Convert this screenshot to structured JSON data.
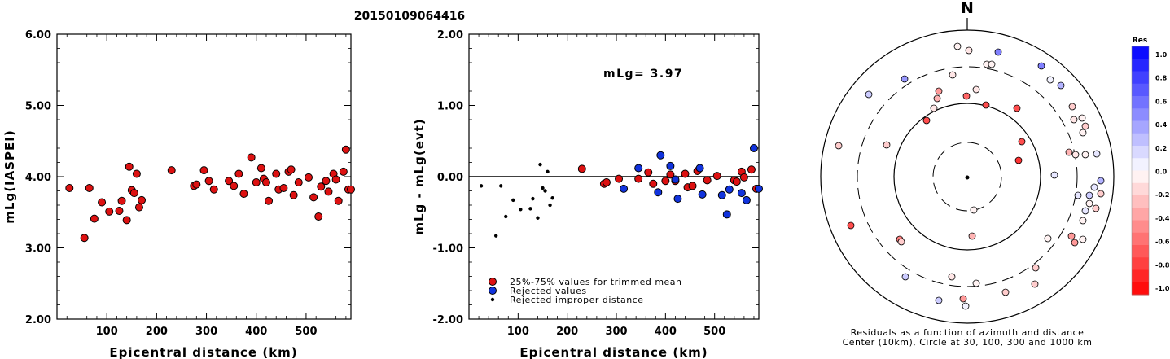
{
  "title": "20150109064416",
  "chart_data": [
    {
      "type": "scatter",
      "name": "magnitude-vs-distance",
      "xlabel": "Epicentral distance (km)",
      "ylabel": "mLg(IASPEI)",
      "xlim": [
        0,
        590
      ],
      "ylim": [
        2.0,
        6.0
      ],
      "xticks": [
        100,
        200,
        300,
        400,
        500
      ],
      "yticks": [
        2.0,
        3.0,
        4.0,
        5.0,
        6.0
      ],
      "ytick_labels": [
        "2.00",
        "3.00",
        "4.00",
        "5.00",
        "6.00"
      ],
      "points": [
        [
          25,
          3.84
        ],
        [
          55,
          3.14
        ],
        [
          65,
          3.84
        ],
        [
          75,
          3.41
        ],
        [
          90,
          3.64
        ],
        [
          105,
          3.51
        ],
        [
          125,
          3.52
        ],
        [
          130,
          3.66
        ],
        [
          140,
          3.39
        ],
        [
          145,
          4.14
        ],
        [
          150,
          3.81
        ],
        [
          155,
          3.77
        ],
        [
          160,
          4.04
        ],
        [
          165,
          3.57
        ],
        [
          170,
          3.67
        ],
        [
          230,
          4.09
        ],
        [
          275,
          3.87
        ],
        [
          280,
          3.89
        ],
        [
          295,
          4.09
        ],
        [
          305,
          3.94
        ],
        [
          315,
          3.82
        ],
        [
          345,
          3.94
        ],
        [
          355,
          3.87
        ],
        [
          365,
          4.04
        ],
        [
          375,
          3.76
        ],
        [
          390,
          4.27
        ],
        [
          400,
          3.92
        ],
        [
          410,
          4.12
        ],
        [
          415,
          3.97
        ],
        [
          420,
          3.92
        ],
        [
          425,
          3.66
        ],
        [
          440,
          4.04
        ],
        [
          445,
          3.82
        ],
        [
          455,
          3.84
        ],
        [
          465,
          4.07
        ],
        [
          470,
          4.1
        ],
        [
          475,
          3.74
        ],
        [
          485,
          3.92
        ],
        [
          505,
          3.99
        ],
        [
          515,
          3.71
        ],
        [
          525,
          3.44
        ],
        [
          530,
          3.86
        ],
        [
          540,
          3.94
        ],
        [
          545,
          3.79
        ],
        [
          555,
          4.04
        ],
        [
          560,
          3.96
        ],
        [
          565,
          3.66
        ],
        [
          575,
          4.07
        ],
        [
          580,
          4.38
        ],
        [
          585,
          3.82
        ],
        [
          590,
          3.82
        ]
      ]
    },
    {
      "type": "scatter",
      "name": "residual-vs-distance",
      "xlabel": "Epicentral distance (km)",
      "ylabel": "mLg - mLg(evt)",
      "annotation": "mLg= 3.97",
      "xlim": [
        0,
        590
      ],
      "ylim": [
        -2.0,
        2.0
      ],
      "xticks": [
        100,
        200,
        300,
        400,
        500
      ],
      "yticks": [
        -2.0,
        -1.0,
        0.0,
        1.0,
        2.0
      ],
      "ytick_labels": [
        "-2.00",
        "-1.00",
        "0.00",
        "1.00",
        "2.00"
      ],
      "legend": [
        {
          "label": "25%-75% values for trimmed mean",
          "color": "#dd1111"
        },
        {
          "label": "Rejected values",
          "color": "#1133dd"
        },
        {
          "label": "Rejected improper distance",
          "color": "#000000"
        }
      ],
      "series": [
        {
          "name": "25%-75% values for trimmed mean",
          "points": [
            [
              230,
              0.11
            ],
            [
              275,
              -0.1
            ],
            [
              280,
              -0.08
            ],
            [
              305,
              -0.03
            ],
            [
              345,
              -0.03
            ],
            [
              365,
              0.06
            ],
            [
              375,
              -0.1
            ],
            [
              400,
              -0.06
            ],
            [
              410,
              0.03
            ],
            [
              420,
              -0.06
            ],
            [
              440,
              0.04
            ],
            [
              445,
              -0.15
            ],
            [
              455,
              -0.13
            ],
            [
              465,
              0.08
            ],
            [
              485,
              -0.05
            ],
            [
              505,
              0.01
            ],
            [
              540,
              -0.05
            ],
            [
              545,
              -0.07
            ],
            [
              555,
              0.07
            ],
            [
              560,
              -0.01
            ],
            [
              575,
              0.1
            ],
            [
              585,
              -0.17
            ]
          ]
        },
        {
          "name": "Rejected values",
          "points": [
            [
              315,
              -0.17
            ],
            [
              345,
              0.12
            ],
            [
              390,
              0.3
            ],
            [
              385,
              -0.22
            ],
            [
              410,
              0.15
            ],
            [
              420,
              -0.04
            ],
            [
              425,
              -0.31
            ],
            [
              470,
              0.12
            ],
            [
              475,
              -0.25
            ],
            [
              515,
              -0.26
            ],
            [
              525,
              -0.53
            ],
            [
              530,
              -0.18
            ],
            [
              555,
              -0.23
            ],
            [
              565,
              -0.33
            ],
            [
              580,
              0.4
            ],
            [
              590,
              -0.17
            ]
          ]
        },
        {
          "name": "Rejected improper distance",
          "points": [
            [
              25,
              -0.13
            ],
            [
              55,
              -0.83
            ],
            [
              65,
              -0.13
            ],
            [
              75,
              -0.56
            ],
            [
              90,
              -0.33
            ],
            [
              105,
              -0.46
            ],
            [
              125,
              -0.45
            ],
            [
              130,
              -0.31
            ],
            [
              140,
              -0.58
            ],
            [
              145,
              0.17
            ],
            [
              150,
              -0.16
            ],
            [
              155,
              -0.2
            ],
            [
              160,
              0.07
            ],
            [
              165,
              -0.4
            ],
            [
              170,
              -0.3
            ]
          ]
        }
      ]
    },
    {
      "type": "polar-scatter",
      "name": "azimuth-residual-map",
      "north_label": "N",
      "caption_line1": "Residuals as a function of azimuth and distance",
      "caption_line2": "Center (10km), Circle at 30, 100, 300 and 1000 km",
      "colorbar_title": "Res",
      "colorbar_ticks": [
        "1.0",
        "0.8",
        "0.6",
        "0.4",
        "0.2",
        "0.0",
        "-0.2",
        "-0.4",
        "-0.6",
        "-0.8",
        "-1.0"
      ],
      "points": [
        [
          1176,
          57,
          -0.05
        ],
        [
          1190,
          62,
          -0.1
        ],
        [
          1226,
          64,
          0.5
        ],
        [
          1212,
          79,
          -0.05
        ],
        [
          1218,
          79,
          -0.05
        ],
        [
          1170,
          92,
          -0.1
        ],
        [
          1279,
          81,
          0.5
        ],
        [
          1111,
          97,
          0.4
        ],
        [
          1290,
          98,
          0.05
        ],
        [
          1303,
          105,
          0.3
        ],
        [
          1153,
          112,
          -0.4
        ],
        [
          1199,
          110,
          -0.1
        ],
        [
          1151,
          121,
          -0.3
        ],
        [
          1067,
          116,
          0.2
        ],
        [
          1187,
          118,
          -0.6
        ],
        [
          1147,
          133,
          -0.1
        ],
        [
          1211,
          129,
          -0.7
        ],
        [
          1249,
          133,
          -0.7
        ],
        [
          1317,
          131,
          -0.2
        ],
        [
          1319,
          147,
          -0.1
        ],
        [
          1138,
          148,
          -0.7
        ],
        [
          1329,
          145,
          -0.05
        ],
        [
          1333,
          155,
          -0.2
        ],
        [
          1330,
          163,
          -0.05
        ],
        [
          1255,
          174,
          -0.7
        ],
        [
          1030,
          179,
          -0.2
        ],
        [
          1089,
          178,
          -0.2
        ],
        [
          1313,
          187,
          -0.3
        ],
        [
          1321,
          190,
          -0.1
        ],
        [
          1333,
          190,
          -0.05
        ],
        [
          1347,
          189,
          0.1
        ],
        [
          1251,
          197,
          -0.8
        ],
        [
          1295,
          215,
          0.1
        ],
        [
          1352,
          222,
          0.3
        ],
        [
          1344,
          230,
          0.1
        ],
        [
          1338,
          240,
          0.2
        ],
        [
          1324,
          240,
          0.1
        ],
        [
          1352,
          238,
          -0.2
        ],
        [
          1338,
          250,
          -0.05
        ],
        [
          1346,
          256,
          -0.2
        ],
        [
          1333,
          259,
          0.1
        ],
        [
          1196,
          258,
          -0.05
        ],
        [
          1330,
          271,
          -0.05
        ],
        [
          1045,
          277,
          -0.7
        ],
        [
          1316,
          290,
          -0.4
        ],
        [
          1105,
          294,
          -0.5
        ],
        [
          1330,
          294,
          -0.05
        ],
        [
          1107,
          297,
          -0.2
        ],
        [
          1320,
          298,
          -0.4
        ],
        [
          1287,
          293,
          -0.05
        ],
        [
          1194,
          290,
          -0.3
        ],
        [
          1272,
          329,
          -0.2
        ],
        [
          1112,
          340,
          0.2
        ],
        [
          1169,
          340,
          -0.1
        ],
        [
          1271,
          349,
          -0.2
        ],
        [
          1199,
          348,
          -0.05
        ],
        [
          1235,
          359,
          -0.2
        ],
        [
          1153,
          369,
          0.2
        ],
        [
          1183,
          367,
          -0.4
        ],
        [
          1186,
          376,
          0.05
        ]
      ]
    }
  ]
}
